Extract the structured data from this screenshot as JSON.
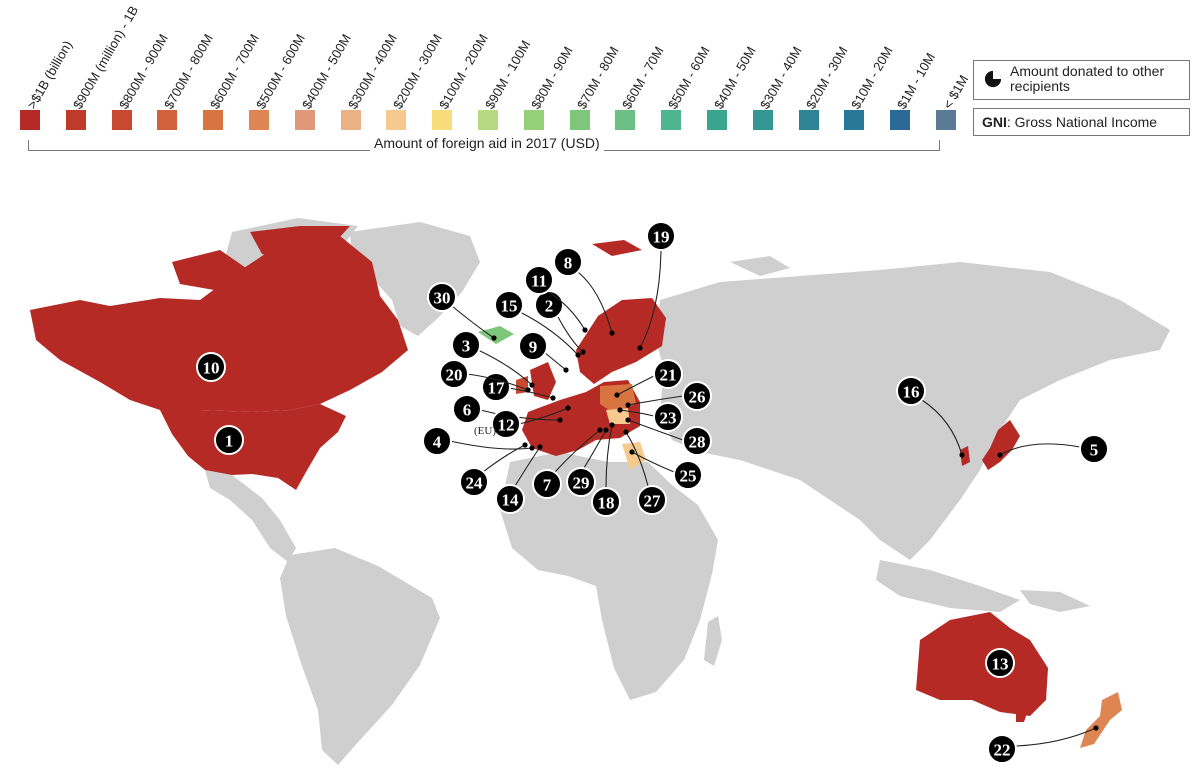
{
  "legend": {
    "caption": "Amount of foreign aid in 2017 (USD)",
    "bins": [
      {
        "label": ">$1B (billion)",
        "color": "#b52a25"
      },
      {
        "label": "$900M (million) - 1B",
        "color": "#c03a2b"
      },
      {
        "label": "$800M - 900M",
        "color": "#c8492f"
      },
      {
        "label": "$700M - 800M",
        "color": "#d0613a"
      },
      {
        "label": "$600M - 700M",
        "color": "#d8743f"
      },
      {
        "label": "$500M - 600M",
        "color": "#de8554"
      },
      {
        "label": "$400M - 500M",
        "color": "#e0987a"
      },
      {
        "label": "$300M - 400M",
        "color": "#eab184"
      },
      {
        "label": "$200M - 300M",
        "color": "#f6c98f"
      },
      {
        "label": "$100M - 200M",
        "color": "#f7dc7a"
      },
      {
        "label": "$90M - 100M",
        "color": "#b7d982"
      },
      {
        "label": "$80M - 90M",
        "color": "#95cf78"
      },
      {
        "label": "$70M - 80M",
        "color": "#7ec67a"
      },
      {
        "label": "$60M - 70M",
        "color": "#6cbf84"
      },
      {
        "label": "$50M - 60M",
        "color": "#4fb58f"
      },
      {
        "label": "$40M - 50M",
        "color": "#3aa58e"
      },
      {
        "label": "$30M - 40M",
        "color": "#339692"
      },
      {
        "label": "$20M - 30M",
        "color": "#2e8395"
      },
      {
        "label": "$10M - 20M",
        "color": "#2a7898"
      },
      {
        "label": "$1M - 10M",
        "color": "#2b6a96"
      },
      {
        "label": "< $1M",
        "color": "#5b7a96"
      }
    ],
    "donated_text": "Amount donated to other recipients",
    "gni_abbr": "GNI",
    "gni_text": ": Gross National Income"
  },
  "map": {
    "land_color": "#cfcfcf",
    "eu_label": "(EU)",
    "markers": [
      {
        "n": "1"
      },
      {
        "n": "2"
      },
      {
        "n": "3"
      },
      {
        "n": "4"
      },
      {
        "n": "5"
      },
      {
        "n": "6"
      },
      {
        "n": "7"
      },
      {
        "n": "8"
      },
      {
        "n": "9"
      },
      {
        "n": "10"
      },
      {
        "n": "11"
      },
      {
        "n": "12"
      },
      {
        "n": "13"
      },
      {
        "n": "14"
      },
      {
        "n": "15"
      },
      {
        "n": "16"
      },
      {
        "n": "17"
      },
      {
        "n": "18"
      },
      {
        "n": "19"
      },
      {
        "n": "20"
      },
      {
        "n": "21"
      },
      {
        "n": "22"
      },
      {
        "n": "23"
      },
      {
        "n": "24"
      },
      {
        "n": "25"
      },
      {
        "n": "26"
      },
      {
        "n": "27"
      },
      {
        "n": "28"
      },
      {
        "n": "29"
      },
      {
        "n": "30"
      }
    ]
  }
}
